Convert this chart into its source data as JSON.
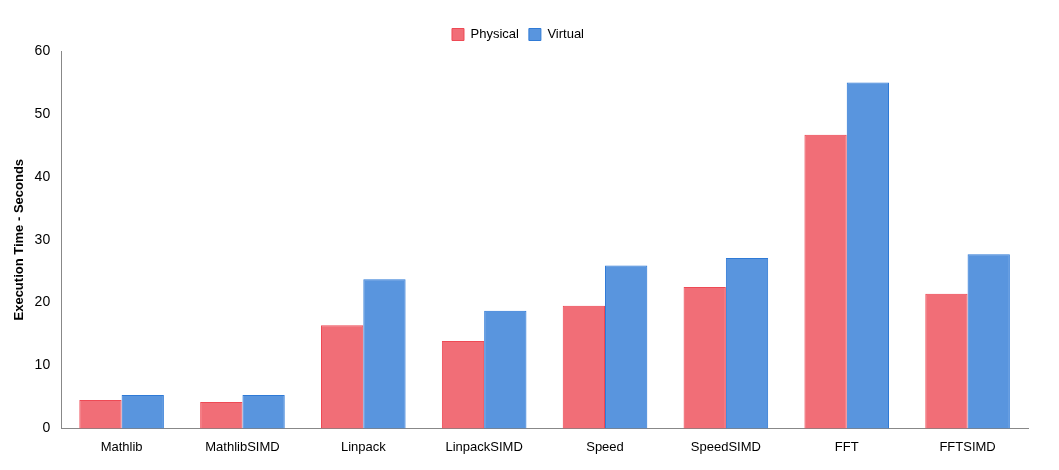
{
  "chart_data": {
    "type": "bar",
    "ylabel": "Execution Time - Seconds",
    "categories": [
      "Mathlib",
      "MathlibSIMD",
      "Linpack",
      "LinpackSIMD",
      "Speed",
      "SpeedSIMD",
      "FFT",
      "FFTSIMD"
    ],
    "series": [
      {
        "name": "Physical",
        "color": "#ee4a55",
        "values": [
          4.5,
          4.2,
          16.4,
          13.9,
          19.5,
          22.5,
          46.7,
          21.4
        ]
      },
      {
        "name": "Virtual",
        "color": "#2f7ad6",
        "values": [
          5.3,
          5.3,
          23.7,
          18.7,
          25.9,
          27.1,
          55.0,
          27.7
        ]
      }
    ],
    "ylim": [
      0,
      60
    ],
    "yticks": [
      0,
      10,
      20,
      30,
      40,
      50,
      60
    ],
    "grid": false,
    "legend": "top"
  }
}
